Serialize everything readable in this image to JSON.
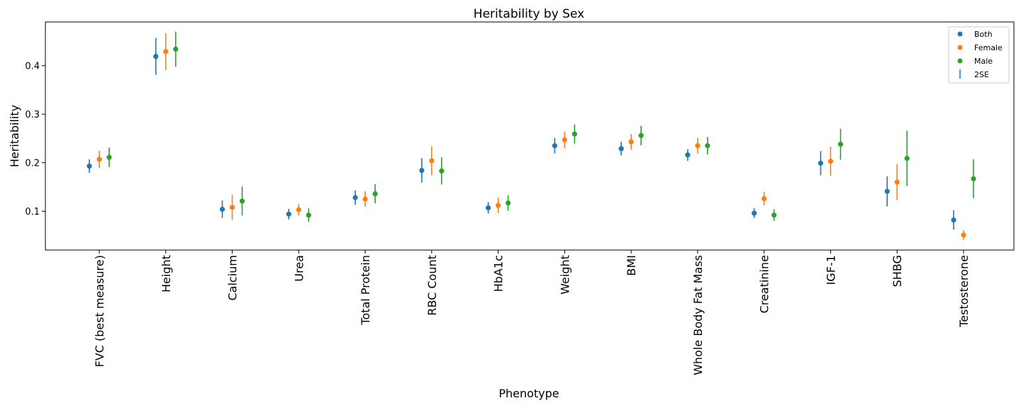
{
  "chart_data": {
    "type": "scatter",
    "title": "Heritability by Sex",
    "xlabel": "Phenotype",
    "ylabel": "Heritability",
    "ylim": [
      0.02,
      0.49
    ],
    "yticks": [
      "0.1",
      "0.2",
      "0.3",
      "0.4"
    ],
    "grid": false,
    "legend_position": "top-right",
    "error_label": "2SE",
    "categories": [
      "FVC (best measure)",
      "Height",
      "Calcium",
      "Urea",
      "Total Protein",
      "RBC Count",
      "HbA1c",
      "Weight",
      "BMI",
      "Whole Body Fat Mass",
      "Creatinine",
      "IGF-1",
      "SHBG",
      "Testosterone"
    ],
    "series": [
      {
        "name": "Both",
        "color": "#1f77b4",
        "values": [
          0.193,
          0.419,
          0.104,
          0.094,
          0.128,
          0.184,
          0.107,
          0.235,
          0.229,
          0.216,
          0.096,
          0.199,
          0.141,
          0.082
        ],
        "errors": [
          0.014,
          0.038,
          0.018,
          0.011,
          0.015,
          0.025,
          0.012,
          0.016,
          0.014,
          0.012,
          0.01,
          0.025,
          0.031,
          0.02
        ]
      },
      {
        "name": "Female",
        "color": "#ff7f0e",
        "values": [
          0.207,
          0.429,
          0.108,
          0.103,
          0.125,
          0.204,
          0.112,
          0.247,
          0.243,
          0.235,
          0.126,
          0.203,
          0.16,
          0.051
        ],
        "errors": [
          0.018,
          0.038,
          0.026,
          0.012,
          0.016,
          0.03,
          0.016,
          0.017,
          0.016,
          0.016,
          0.014,
          0.03,
          0.037,
          0.01
        ]
      },
      {
        "name": "Male",
        "color": "#2ca02c",
        "values": [
          0.211,
          0.434,
          0.121,
          0.092,
          0.136,
          0.183,
          0.117,
          0.259,
          0.256,
          0.235,
          0.092,
          0.238,
          0.209,
          0.167
        ],
        "errors": [
          0.02,
          0.036,
          0.03,
          0.014,
          0.02,
          0.028,
          0.016,
          0.02,
          0.02,
          0.018,
          0.012,
          0.032,
          0.057,
          0.04
        ]
      }
    ]
  }
}
